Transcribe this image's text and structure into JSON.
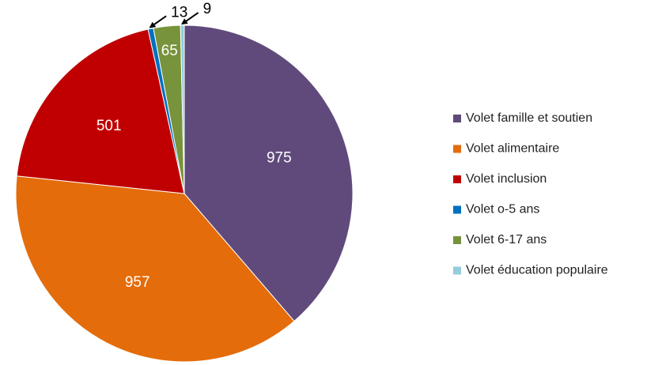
{
  "chart_data": {
    "type": "pie",
    "categories": [
      "Volet famille et soutien",
      "Volet alimentaire",
      "Volet inclusion",
      "Volet o-5 ans",
      "Volet 6-17 ans",
      "Volet éducation populaire"
    ],
    "values": [
      975,
      957,
      501,
      13,
      65,
      9
    ],
    "colors": [
      "#604a7b",
      "#e46c0a",
      "#c00000",
      "#0070c0",
      "#77933c",
      "#93cddd"
    ],
    "legend": "right"
  }
}
